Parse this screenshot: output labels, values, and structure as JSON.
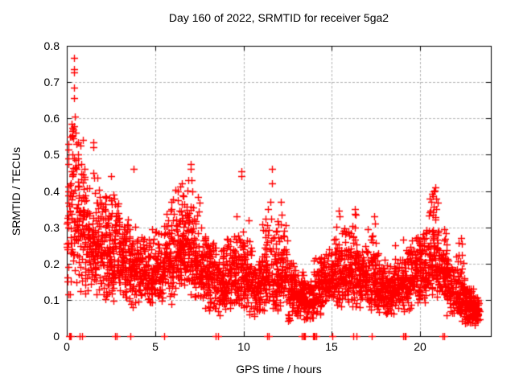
{
  "title": "Day 160 of 2022, SRMTID for receiver 5ga2",
  "xlabel": "GPS time / hours",
  "ylabel": "SRMTID / TECUs",
  "chart_data": {
    "type": "scatter",
    "marker": "plus",
    "marker_color": "#ff0000",
    "background": "#ffffff",
    "border_color": "#000000",
    "grid": {
      "show": true,
      "color": "#b4b4b4",
      "style": "dashed"
    },
    "xlim": [
      0,
      24
    ],
    "ylim": [
      0,
      0.8
    ],
    "xticks": [
      0,
      5,
      10,
      15,
      20
    ],
    "xtick_labels": [
      "0",
      "5",
      "10",
      "15",
      "20"
    ],
    "yticks": [
      0,
      0.1,
      0.2,
      0.3,
      0.4,
      0.5,
      0.6,
      0.7,
      0.8
    ],
    "ytick_labels": [
      "0",
      "0.1",
      "0.2",
      "0.3",
      "0.4",
      "0.5",
      "0.6",
      "0.7",
      "0.8"
    ],
    "seed": 20220160,
    "notable_points": [
      [
        0.07,
        0.53
      ],
      [
        0.07,
        0.515
      ],
      [
        0.07,
        0.49
      ],
      [
        0.07,
        0.475
      ],
      [
        0.07,
        0.4
      ],
      [
        0.06,
        0.315
      ],
      [
        0.07,
        0.3
      ],
      [
        0.06,
        0.245
      ],
      [
        0.07,
        0.19
      ],
      [
        0.06,
        0.15
      ],
      [
        0.07,
        0.115
      ],
      [
        0.41,
        0.767
      ],
      [
        0.41,
        0.735
      ],
      [
        0.42,
        0.726
      ],
      [
        0.41,
        0.685
      ],
      [
        0.42,
        0.657
      ],
      [
        0.45,
        0.605
      ],
      [
        0.28,
        0.585
      ],
      [
        0.32,
        0.575
      ],
      [
        0.3,
        0.565
      ],
      [
        0.36,
        0.57
      ],
      [
        0.42,
        0.578
      ],
      [
        0.33,
        0.555
      ],
      [
        0.38,
        0.545
      ],
      [
        0.48,
        0.56
      ],
      [
        0.3,
        0.5
      ],
      [
        0.41,
        0.49
      ],
      [
        0.52,
        0.485
      ],
      [
        0.66,
        0.5
      ],
      [
        0.8,
        0.475
      ],
      [
        1.0,
        0.46
      ],
      [
        0.55,
        0.53
      ],
      [
        0.62,
        0.535
      ],
      [
        0.78,
        0.525
      ],
      [
        0.92,
        0.54
      ],
      [
        1.49,
        0.535
      ],
      [
        1.5,
        0.52
      ],
      [
        1.52,
        0.45
      ],
      [
        2.5,
        0.44
      ],
      [
        3.8,
        0.46
      ],
      [
        5.9,
        0.37
      ],
      [
        6.3,
        0.4
      ],
      [
        6.5,
        0.42
      ],
      [
        6.6,
        0.385
      ],
      [
        7.0,
        0.475
      ],
      [
        7.0,
        0.46
      ],
      [
        7.05,
        0.43
      ],
      [
        7.1,
        0.4
      ],
      [
        9.9,
        0.455
      ],
      [
        9.9,
        0.44
      ],
      [
        9.6,
        0.33
      ],
      [
        10.3,
        0.32
      ],
      [
        11.4,
        0.35
      ],
      [
        11.5,
        0.37
      ],
      [
        11.6,
        0.46
      ],
      [
        11.6,
        0.42
      ],
      [
        12.1,
        0.37
      ],
      [
        12.15,
        0.335
      ],
      [
        15.4,
        0.345
      ],
      [
        15.45,
        0.33
      ],
      [
        16.3,
        0.35
      ],
      [
        16.35,
        0.335
      ],
      [
        17.4,
        0.33
      ],
      [
        17.45,
        0.31
      ],
      [
        18.6,
        0.25
      ],
      [
        20.6,
        0.345
      ],
      [
        20.65,
        0.37
      ],
      [
        20.7,
        0.385
      ],
      [
        20.75,
        0.4
      ],
      [
        20.8,
        0.402
      ],
      [
        20.85,
        0.41
      ],
      [
        20.9,
        0.38
      ],
      [
        22.3,
        0.27
      ],
      [
        22.35,
        0.255
      ]
    ],
    "zero_line_points": [
      0.13,
      0.16,
      0.19,
      0.22,
      0.72,
      0.86,
      2.72,
      2.82,
      3.62,
      5.52,
      8.42,
      8.58,
      11.32,
      11.45,
      13.32,
      13.38,
      13.44,
      13.5,
      13.92,
      13.98,
      14.04,
      14.1,
      15.05,
      16.22,
      16.38,
      17.25,
      19.05,
      19.12,
      19.19,
      21.25,
      21.38
    ],
    "density_bins": [
      [
        0.0,
        0.5,
        55,
        0.1,
        0.32,
        0.6
      ],
      [
        0.5,
        1.0,
        70,
        0.1,
        0.28,
        0.52
      ],
      [
        1.0,
        1.5,
        70,
        0.1,
        0.25,
        0.46
      ],
      [
        1.5,
        2.0,
        80,
        0.1,
        0.23,
        0.44
      ],
      [
        2.0,
        2.5,
        80,
        0.09,
        0.22,
        0.42
      ],
      [
        2.5,
        3.0,
        80,
        0.08,
        0.2,
        0.4
      ],
      [
        3.0,
        3.5,
        72,
        0.08,
        0.17,
        0.36
      ],
      [
        3.5,
        4.0,
        72,
        0.06,
        0.16,
        0.33
      ],
      [
        4.0,
        4.5,
        70,
        0.08,
        0.16,
        0.3
      ],
      [
        4.5,
        5.0,
        70,
        0.08,
        0.15,
        0.3
      ],
      [
        5.0,
        5.5,
        70,
        0.08,
        0.16,
        0.32
      ],
      [
        5.5,
        6.0,
        70,
        0.08,
        0.18,
        0.37
      ],
      [
        6.0,
        6.5,
        78,
        0.1,
        0.21,
        0.42
      ],
      [
        6.5,
        7.0,
        78,
        0.1,
        0.22,
        0.44
      ],
      [
        7.0,
        7.5,
        74,
        0.08,
        0.19,
        0.4
      ],
      [
        7.5,
        8.0,
        70,
        0.07,
        0.16,
        0.31
      ],
      [
        8.0,
        8.5,
        70,
        0.06,
        0.14,
        0.27
      ],
      [
        8.5,
        9.0,
        70,
        0.05,
        0.13,
        0.25
      ],
      [
        9.0,
        9.5,
        70,
        0.05,
        0.13,
        0.29
      ],
      [
        9.5,
        10.0,
        74,
        0.05,
        0.14,
        0.32
      ],
      [
        10.0,
        10.5,
        74,
        0.05,
        0.13,
        0.31
      ],
      [
        10.5,
        11.0,
        74,
        0.04,
        0.11,
        0.24
      ],
      [
        11.0,
        11.5,
        74,
        0.05,
        0.13,
        0.34
      ],
      [
        11.5,
        12.0,
        70,
        0.05,
        0.14,
        0.36
      ],
      [
        12.0,
        12.5,
        70,
        0.06,
        0.15,
        0.34
      ],
      [
        12.5,
        13.0,
        70,
        0.04,
        0.12,
        0.24
      ],
      [
        13.0,
        13.5,
        70,
        0.03,
        0.1,
        0.19
      ],
      [
        13.5,
        14.0,
        66,
        0.03,
        0.09,
        0.17
      ],
      [
        14.0,
        14.5,
        70,
        0.05,
        0.12,
        0.24
      ],
      [
        14.5,
        15.0,
        70,
        0.08,
        0.14,
        0.27
      ],
      [
        15.0,
        15.5,
        70,
        0.08,
        0.15,
        0.33
      ],
      [
        15.5,
        16.0,
        70,
        0.08,
        0.15,
        0.32
      ],
      [
        16.0,
        16.5,
        70,
        0.07,
        0.15,
        0.34
      ],
      [
        16.5,
        17.0,
        70,
        0.06,
        0.14,
        0.27
      ],
      [
        17.0,
        17.5,
        70,
        0.06,
        0.14,
        0.32
      ],
      [
        17.5,
        18.0,
        70,
        0.05,
        0.12,
        0.24
      ],
      [
        18.0,
        18.5,
        70,
        0.05,
        0.12,
        0.21
      ],
      [
        18.5,
        19.0,
        70,
        0.06,
        0.13,
        0.24
      ],
      [
        19.0,
        19.5,
        70,
        0.06,
        0.13,
        0.27
      ],
      [
        19.5,
        20.0,
        70,
        0.08,
        0.15,
        0.29
      ],
      [
        20.0,
        20.5,
        70,
        0.08,
        0.15,
        0.32
      ],
      [
        20.5,
        21.0,
        76,
        0.1,
        0.18,
        0.4
      ],
      [
        21.0,
        21.5,
        70,
        0.08,
        0.16,
        0.32
      ],
      [
        21.5,
        22.0,
        70,
        0.05,
        0.12,
        0.24
      ],
      [
        22.0,
        22.5,
        74,
        0.04,
        0.1,
        0.26
      ],
      [
        22.5,
        23.0,
        92,
        0.03,
        0.08,
        0.15
      ],
      [
        23.0,
        23.35,
        58,
        0.03,
        0.07,
        0.12
      ]
    ]
  }
}
